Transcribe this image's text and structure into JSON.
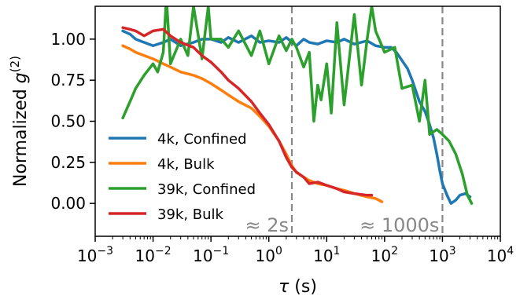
{
  "chart_data": {
    "type": "line",
    "xscale": "log",
    "xlim": [
      0.001,
      10000
    ],
    "ylim": [
      -0.2,
      1.2
    ],
    "xticks": [
      0.001,
      0.01,
      0.1,
      1,
      10,
      100,
      1000,
      10000
    ],
    "xtick_labels": [
      {
        "base": "10",
        "exp": "−3"
      },
      {
        "base": "10",
        "exp": "−2"
      },
      {
        "base": "10",
        "exp": "−1"
      },
      {
        "base": "10",
        "exp": "0"
      },
      {
        "base": "10",
        "exp": "1"
      },
      {
        "base": "10",
        "exp": "2"
      },
      {
        "base": "10",
        "exp": "3"
      },
      {
        "base": "10",
        "exp": "4"
      }
    ],
    "yticks": [
      0.0,
      0.25,
      0.5,
      0.75,
      1.0
    ],
    "ytick_labels": [
      "0.00",
      "0.25",
      "0.50",
      "0.75",
      "1.00"
    ],
    "xlabel": {
      "symbol": "τ",
      "unit": " (s)"
    },
    "ylabel": {
      "prefix": "Normalized ",
      "symbol": "g",
      "sup": "(2)"
    },
    "grid": false,
    "legend_position": "lower-left",
    "vlines": [
      {
        "x": 2.5,
        "label": "≈ 2s",
        "color": "#888888"
      },
      {
        "x": 1000,
        "label": "≈ 1000s",
        "color": "#888888"
      }
    ],
    "series": [
      {
        "name": "4k, Confined",
        "color": "#1f77b4",
        "points": [
          [
            0.003,
            1.05
          ],
          [
            0.004,
            1.03
          ],
          [
            0.005,
            1.0
          ],
          [
            0.007,
            0.98
          ],
          [
            0.01,
            0.96
          ],
          [
            0.015,
            0.98
          ],
          [
            0.02,
            1.0
          ],
          [
            0.03,
            0.96
          ],
          [
            0.05,
            0.98
          ],
          [
            0.07,
            1.0
          ],
          [
            0.1,
            1.0
          ],
          [
            0.15,
            0.98
          ],
          [
            0.2,
            1.01
          ],
          [
            0.3,
            0.98
          ],
          [
            0.5,
            1.02
          ],
          [
            0.7,
            0.98
          ],
          [
            1.0,
            0.99
          ],
          [
            1.5,
            0.98
          ],
          [
            2.0,
            1.01
          ],
          [
            3.0,
            0.96
          ],
          [
            4.0,
            1.0
          ],
          [
            5.0,
            0.98
          ],
          [
            7.0,
            0.97
          ],
          [
            10.0,
            0.99
          ],
          [
            15.0,
            0.98
          ],
          [
            20.0,
            1.0
          ],
          [
            30.0,
            0.97
          ],
          [
            50.0,
            0.99
          ],
          [
            70.0,
            0.96
          ],
          [
            100.0,
            0.95
          ],
          [
            130.0,
            0.95
          ],
          [
            160.0,
            0.92
          ],
          [
            200.0,
            0.87
          ],
          [
            250.0,
            0.82
          ],
          [
            300.0,
            0.75
          ],
          [
            350.0,
            0.68
          ],
          [
            400.0,
            0.62
          ],
          [
            500.0,
            0.56
          ],
          [
            600.0,
            0.48
          ],
          [
            700.0,
            0.4
          ],
          [
            800.0,
            0.3
          ],
          [
            900.0,
            0.2
          ],
          [
            1000.0,
            0.12
          ],
          [
            1200.0,
            0.05
          ],
          [
            1400.0,
            0.0
          ],
          [
            1700.0,
            0.02
          ],
          [
            2000.0,
            0.05
          ],
          [
            2500.0,
            0.06
          ],
          [
            3000.0,
            0.04
          ]
        ]
      },
      {
        "name": "4k, Bulk",
        "color": "#ff7f0e",
        "points": [
          [
            0.003,
            0.96
          ],
          [
            0.004,
            0.94
          ],
          [
            0.005,
            0.92
          ],
          [
            0.007,
            0.9
          ],
          [
            0.01,
            0.88
          ],
          [
            0.015,
            0.85
          ],
          [
            0.02,
            0.83
          ],
          [
            0.03,
            0.8
          ],
          [
            0.05,
            0.78
          ],
          [
            0.07,
            0.76
          ],
          [
            0.1,
            0.73
          ],
          [
            0.15,
            0.69
          ],
          [
            0.2,
            0.66
          ],
          [
            0.3,
            0.62
          ],
          [
            0.5,
            0.58
          ],
          [
            0.7,
            0.53
          ],
          [
            1.0,
            0.47
          ],
          [
            1.5,
            0.38
          ],
          [
            2.0,
            0.3
          ],
          [
            2.5,
            0.23
          ],
          [
            3.0,
            0.19
          ],
          [
            4.0,
            0.16
          ],
          [
            5.0,
            0.14
          ],
          [
            7.0,
            0.12
          ],
          [
            10.0,
            0.11
          ],
          [
            15.0,
            0.09
          ],
          [
            20.0,
            0.08
          ],
          [
            30.0,
            0.06
          ],
          [
            50.0,
            0.04
          ],
          [
            70.0,
            0.03
          ],
          [
            90.0,
            0.01
          ]
        ]
      },
      {
        "name": "39k, Confined",
        "color": "#2ca02c",
        "points": [
          [
            0.003,
            0.52
          ],
          [
            0.004,
            0.62
          ],
          [
            0.005,
            0.7
          ],
          [
            0.007,
            0.78
          ],
          [
            0.01,
            0.85
          ],
          [
            0.012,
            0.8
          ],
          [
            0.015,
            0.92
          ],
          [
            0.017,
            1.25
          ],
          [
            0.02,
            0.85
          ],
          [
            0.03,
            1.0
          ],
          [
            0.04,
            0.9
          ],
          [
            0.05,
            1.2
          ],
          [
            0.07,
            0.88
          ],
          [
            0.09,
            1.2
          ],
          [
            0.1,
            1.0
          ],
          [
            0.15,
            1.0
          ],
          [
            0.2,
            0.95
          ],
          [
            0.3,
            1.05
          ],
          [
            0.5,
            0.9
          ],
          [
            0.7,
            1.05
          ],
          [
            1.0,
            0.85
          ],
          [
            1.5,
            1.02
          ],
          [
            2.0,
            0.93
          ],
          [
            2.5,
            1.0
          ],
          [
            3.0,
            0.95
          ],
          [
            4.0,
            0.83
          ],
          [
            5.0,
            0.92
          ],
          [
            6.0,
            0.5
          ],
          [
            7.0,
            0.72
          ],
          [
            8.0,
            0.63
          ],
          [
            10.0,
            0.85
          ],
          [
            12.0,
            0.55
          ],
          [
            15.0,
            1.1
          ],
          [
            20.0,
            0.6
          ],
          [
            30.0,
            1.15
          ],
          [
            40.0,
            0.72
          ],
          [
            50.0,
            1.0
          ],
          [
            60.0,
            1.2
          ],
          [
            70.0,
            1.05
          ],
          [
            100.0,
            0.92
          ],
          [
            150.0,
            0.95
          ],
          [
            200.0,
            0.7
          ],
          [
            300.0,
            0.72
          ],
          [
            400.0,
            0.5
          ],
          [
            500.0,
            0.75
          ],
          [
            600.0,
            0.42
          ],
          [
            800.0,
            0.45
          ],
          [
            1000.0,
            0.42
          ],
          [
            1300.0,
            0.38
          ],
          [
            1700.0,
            0.3
          ],
          [
            2200.0,
            0.18
          ],
          [
            2700.0,
            0.05
          ],
          [
            3200.0,
            0.0
          ]
        ]
      },
      {
        "name": "39k, Bulk",
        "color": "#d62728",
        "points": [
          [
            0.003,
            1.07
          ],
          [
            0.004,
            1.06
          ],
          [
            0.005,
            1.05
          ],
          [
            0.007,
            1.02
          ],
          [
            0.01,
            1.05
          ],
          [
            0.015,
            1.06
          ],
          [
            0.02,
            1.02
          ],
          [
            0.03,
            0.98
          ],
          [
            0.05,
            0.95
          ],
          [
            0.07,
            0.9
          ],
          [
            0.1,
            0.86
          ],
          [
            0.15,
            0.8
          ],
          [
            0.2,
            0.75
          ],
          [
            0.3,
            0.7
          ],
          [
            0.5,
            0.62
          ],
          [
            0.7,
            0.55
          ],
          [
            1.0,
            0.48
          ],
          [
            1.5,
            0.38
          ],
          [
            2.0,
            0.28
          ],
          [
            2.5,
            0.22
          ],
          [
            3.0,
            0.19
          ],
          [
            4.0,
            0.16
          ],
          [
            5.0,
            0.12
          ],
          [
            7.0,
            0.13
          ],
          [
            10.0,
            0.11
          ],
          [
            15.0,
            0.09
          ],
          [
            20.0,
            0.07
          ],
          [
            30.0,
            0.06
          ],
          [
            50.0,
            0.05
          ],
          [
            60.0,
            0.05
          ]
        ]
      }
    ]
  }
}
